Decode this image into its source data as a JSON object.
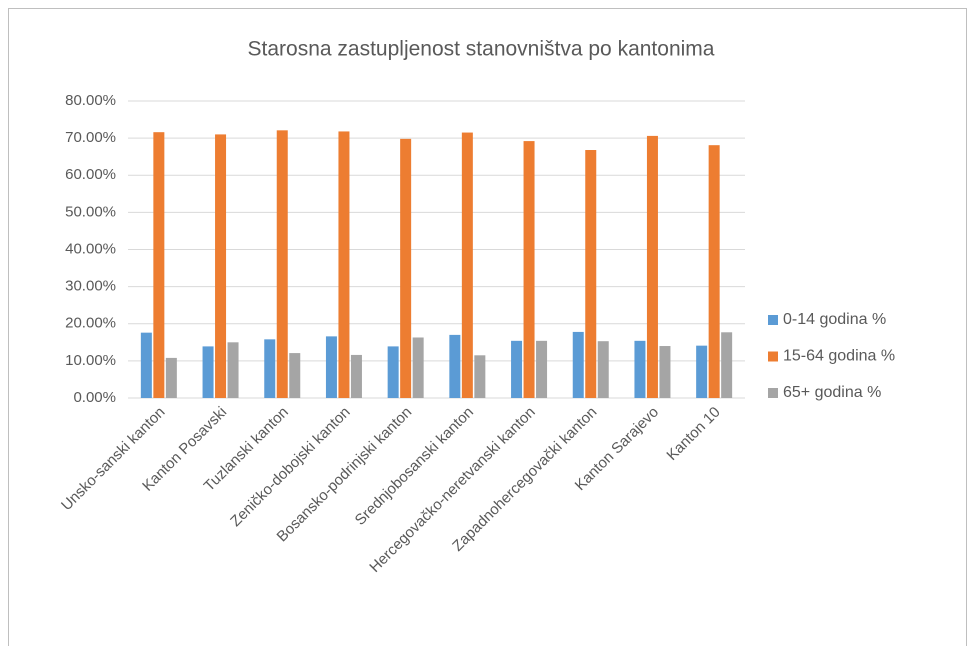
{
  "chart_data": {
    "type": "bar",
    "title": "Starosna zastupljenost stanovništva po kantonima",
    "categories": [
      "Unsko-sanski kanton",
      "Kanton Posavski",
      "Tuzlanski kanton",
      "Zeničko-dobojski kanton",
      "Bosansko-podrinjski kanton",
      "Srednjobosanski kanton",
      "Hercegovačko-neretvanski kanton",
      "Zapadnohercegovački kanton",
      "Kanton Sarajevo",
      "Kanton 10"
    ],
    "series": [
      {
        "name": "0-14 godina %",
        "color": "#5b9bd5",
        "values": [
          17.6,
          13.9,
          15.8,
          16.6,
          13.9,
          17.0,
          15.4,
          17.8,
          15.4,
          14.1
        ]
      },
      {
        "name": "15-64 godina %",
        "color": "#ed7d31",
        "values": [
          71.6,
          71.0,
          72.1,
          71.8,
          69.8,
          71.5,
          69.2,
          66.8,
          70.6,
          68.1
        ]
      },
      {
        "name": "65+ godina %",
        "color": "#a5a5a5",
        "values": [
          10.8,
          15.0,
          12.1,
          11.6,
          16.3,
          11.5,
          15.4,
          15.3,
          14.0,
          17.7
        ]
      }
    ],
    "ylim": [
      0,
      80
    ],
    "yticks": [
      {
        "value": 0,
        "label": "0.00%"
      },
      {
        "value": 10,
        "label": "10.00%"
      },
      {
        "value": 20,
        "label": "20.00%"
      },
      {
        "value": 30,
        "label": "30.00%"
      },
      {
        "value": 40,
        "label": "40.00%"
      },
      {
        "value": 50,
        "label": "50.00%"
      },
      {
        "value": 60,
        "label": "60.00%"
      },
      {
        "value": 70,
        "label": "70.00%"
      },
      {
        "value": 80,
        "label": "80.00%"
      }
    ],
    "grid": true,
    "legend": "right"
  }
}
